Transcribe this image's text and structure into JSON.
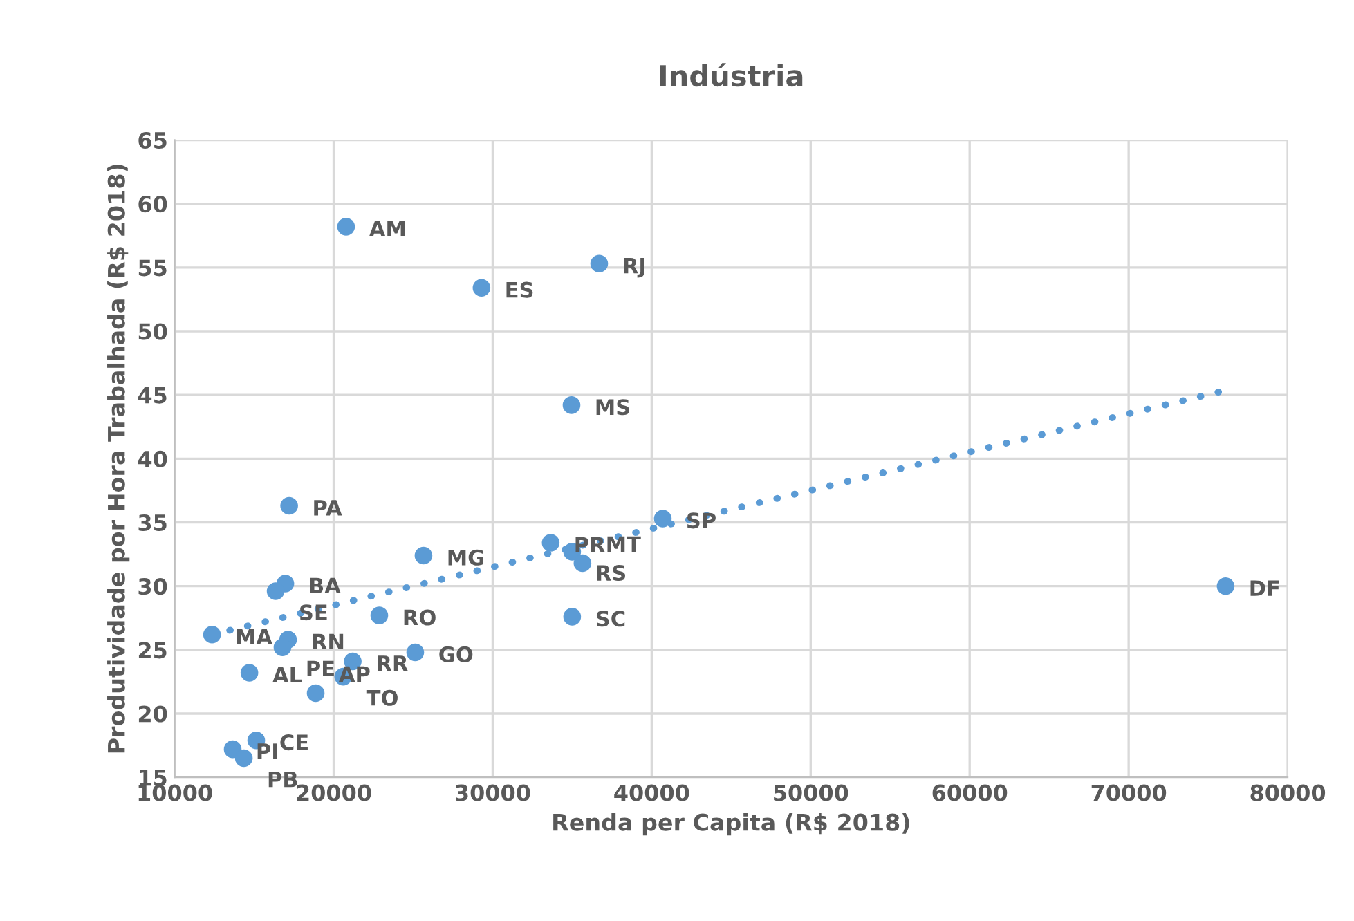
{
  "chart_data": {
    "type": "scatter",
    "title": "Indústria",
    "xlabel": "Renda per Capita (R$ 2018)",
    "ylabel": "Produtividade por Hora Trabalhada (R$ 2018)",
    "xlim": [
      10000,
      80000
    ],
    "xticks": [
      10000,
      20000,
      30000,
      40000,
      50000,
      60000,
      70000,
      80000
    ],
    "ylim": [
      15,
      65
    ],
    "yticks": [
      15,
      20,
      25,
      30,
      35,
      40,
      45,
      50,
      55,
      60,
      65
    ],
    "grid": true,
    "marker": "circle",
    "series": [
      {
        "color": "#5b9bd5",
        "x": [
          20780,
          29300,
          36700,
          34960,
          40700,
          76100,
          17200,
          25650,
          33650,
          35000,
          35650,
          35000,
          22870,
          25130,
          21200,
          20600,
          18870,
          14700,
          12350,
          17130,
          16780,
          16960,
          16350,
          15130,
          13650,
          14350
        ],
        "values": [
          58.2,
          53.4,
          55.3,
          44.2,
          35.3,
          30.0,
          36.3,
          32.4,
          33.4,
          32.7,
          31.8,
          27.6,
          27.7,
          24.8,
          24.1,
          22.9,
          21.6,
          23.2,
          26.2,
          25.8,
          25.2,
          30.2,
          29.6,
          17.9,
          17.2,
          16.5
        ]
      },
      {
        "type": "line",
        "color": "#5b9bd5",
        "line_style": "dotted",
        "marker": "none",
        "x": [
          12350,
          75900
        ],
        "values": [
          26.2,
          45.3
        ]
      }
    ],
    "annotations": [
      {
        "text": "AM",
        "x": 20780,
        "y": 58.2
      },
      {
        "text": "ES",
        "x": 29300,
        "y": 53.4
      },
      {
        "text": "RJ",
        "x": 36700,
        "y": 55.3
      },
      {
        "text": "MS",
        "x": 34960,
        "y": 44.2
      },
      {
        "text": "SP",
        "x": 40700,
        "y": 35.3
      },
      {
        "text": "DF",
        "x": 76100,
        "y": 30.0
      },
      {
        "text": "PA",
        "x": 17200,
        "y": 36.3
      },
      {
        "text": "MG",
        "x": 25650,
        "y": 32.4
      },
      {
        "text": "PR",
        "x": 33650,
        "y": 33.4
      },
      {
        "text": "RS",
        "x": 35000,
        "y": 32.7
      },
      {
        "text": "MT",
        "x": 35650,
        "y": 31.8
      },
      {
        "text": "SC",
        "x": 35000,
        "y": 27.6
      },
      {
        "text": "RO",
        "x": 22870,
        "y": 27.7
      },
      {
        "text": "GO",
        "x": 25130,
        "y": 24.8
      },
      {
        "text": "RR",
        "x": 21200,
        "y": 24.1
      },
      {
        "text": "TO",
        "x": 20600,
        "y": 22.9
      },
      {
        "text": "AP",
        "x": 18870,
        "y": 21.6
      },
      {
        "text": "AL",
        "x": 14700,
        "y": 23.2
      },
      {
        "text": "MA",
        "x": 12350,
        "y": 26.2
      },
      {
        "text": "RN",
        "x": 17130,
        "y": 25.8
      },
      {
        "text": "PE",
        "x": 16780,
        "y": 25.2
      },
      {
        "text": "BA",
        "x": 16960,
        "y": 30.2
      },
      {
        "text": "SE",
        "x": 16350,
        "y": 29.6
      },
      {
        "text": "CE",
        "x": 15130,
        "y": 17.9
      },
      {
        "text": "PI",
        "x": 13650,
        "y": 17.2
      },
      {
        "text": "PB",
        "x": 14350,
        "y": 16.5
      }
    ]
  }
}
